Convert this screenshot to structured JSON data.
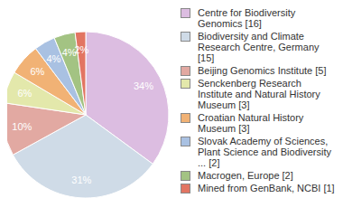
{
  "chart_data": {
    "type": "pie",
    "categories": [
      "Centre for Biodiversity Genomics [16]",
      "Biodiversity and Climate Research Centre, Germany [15]",
      "Beijing Genomics Institute [5]",
      "Senckenberg Research Institute and Natural History Museum [3]",
      "Croatian Natural History Museum [3]",
      "Slovak Academy of Sciences, Plant Science and Biodiversity ... [2]",
      "Macrogen, Europe [2]",
      "Mined from GenBank, NCBI [1]"
    ],
    "values": [
      34,
      31,
      10,
      6,
      6,
      4,
      4,
      2
    ],
    "value_labels": [
      "34%",
      "31%",
      "10%",
      "6%",
      "6%",
      "4%",
      "4%",
      "2%"
    ],
    "data_labels": true,
    "colors": [
      "#dcbde1",
      "#cfdbe7",
      "#e2a9a2",
      "#e3e8ab",
      "#f1b275",
      "#a9c1e2",
      "#a3c383",
      "#e27562"
    ],
    "legend": "right"
  }
}
